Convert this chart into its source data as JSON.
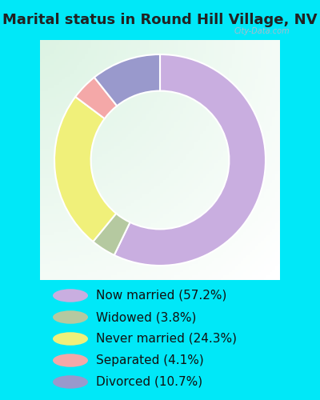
{
  "title": "Marital status in Round Hill Village, NV",
  "categories": [
    "Now married",
    "Widowed",
    "Never married",
    "Separated",
    "Divorced"
  ],
  "values": [
    57.2,
    3.8,
    24.3,
    4.1,
    10.7
  ],
  "colors": [
    "#c9aee0",
    "#b5c9a0",
    "#f0f07a",
    "#f4a8a8",
    "#9999cc"
  ],
  "legend_labels": [
    "Now married (57.2%)",
    "Widowed (3.8%)",
    "Never married (24.3%)",
    "Separated (4.1%)",
    "Divorced (10.7%)"
  ],
  "bg_cyan": "#00e8f8",
  "bg_chart_color": "#d8f0e0",
  "title_fontsize": 13,
  "legend_fontsize": 11,
  "donut_width": 0.38,
  "start_angle": 90,
  "title_color": "#222222",
  "legend_text_color": "#111111"
}
